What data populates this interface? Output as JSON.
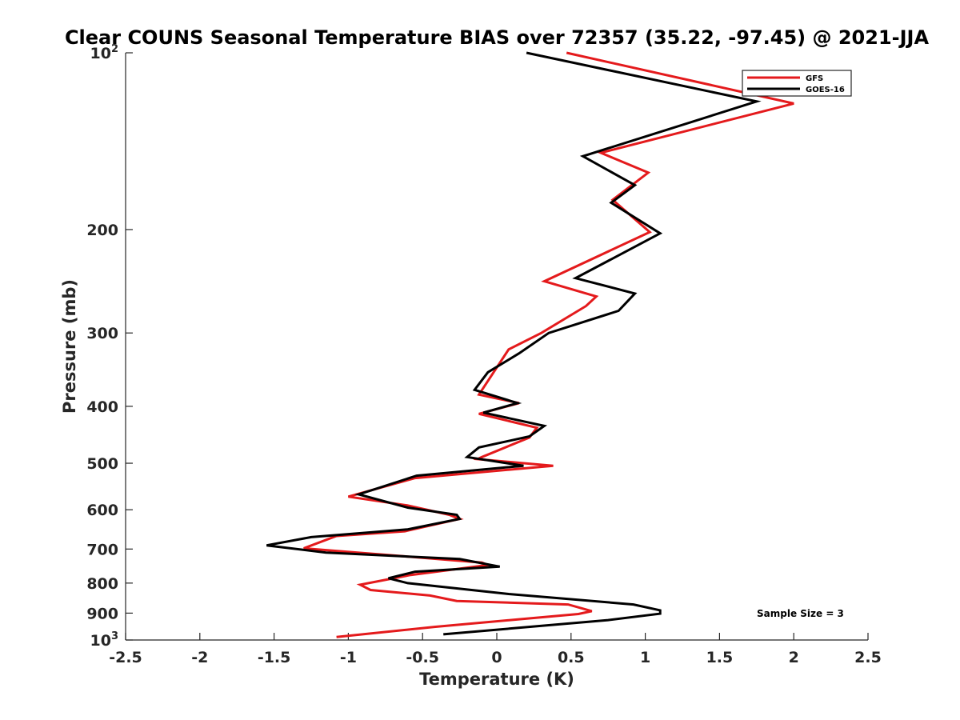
{
  "chart_data": {
    "type": "line",
    "title": "Clear COUNS Seasonal Temperature BIAS over 72357 (35.22, -97.45) @ 2021-JJA",
    "xlabel": "Temperature (K)",
    "ylabel": "Pressure (mb)",
    "xlim": [
      -2.5,
      2.5
    ],
    "ylim": [
      100,
      1000
    ],
    "yscale": "log",
    "yreversed": true,
    "grid": false,
    "legend_position": "top-right",
    "x_ticks": [
      "-2.5",
      "-2",
      "-1.5",
      "-1",
      "-0.5",
      "0",
      "0.5",
      "1",
      "1.5",
      "2",
      "2.5"
    ],
    "x_tick_values": [
      -2.5,
      -2,
      -1.5,
      -1,
      -0.5,
      0,
      0.5,
      1,
      1.5,
      2,
      2.5
    ],
    "y_ticks": [
      {
        "value": 100,
        "base": "10",
        "exp": "2"
      },
      {
        "value": 200,
        "label": "200"
      },
      {
        "value": 300,
        "label": "300"
      },
      {
        "value": 400,
        "label": "400"
      },
      {
        "value": 500,
        "label": "500"
      },
      {
        "value": 600,
        "label": "600"
      },
      {
        "value": 700,
        "label": "700"
      },
      {
        "value": 800,
        "label": "800"
      },
      {
        "value": 900,
        "label": "900"
      },
      {
        "value": 1000,
        "base": "10",
        "exp": "3"
      }
    ],
    "annotation": "Sample Size = 3",
    "series": [
      {
        "name": "GFS",
        "color": "#e41a1c",
        "x": [
          0.47,
          2.0,
          0.7,
          1.02,
          0.78,
          1.03,
          0.32,
          0.67,
          0.6,
          0.3,
          0.08,
          -0.12,
          0.15,
          -0.12,
          0.27,
          0.22,
          -0.1,
          -0.13,
          0.38,
          -0.55,
          -1.0,
          -0.6,
          -0.32,
          -0.25,
          -0.62,
          -1.08,
          -1.3,
          -0.87,
          -0.1,
          -0.06,
          -0.58,
          -0.92,
          -0.85,
          -0.45,
          -0.27,
          0.48,
          0.64,
          0.55,
          0.15,
          -0.42,
          -1.08
        ],
        "y": [
          100,
          122,
          148,
          160,
          178,
          202,
          245,
          260,
          270,
          300,
          320,
          382,
          395,
          412,
          435,
          452,
          488,
          492,
          505,
          530,
          570,
          590,
          612,
          622,
          653,
          665,
          698,
          712,
          738,
          745,
          775,
          805,
          822,
          840,
          858,
          870,
          893,
          903,
          922,
          950,
          988
        ]
      },
      {
        "name": "GOES-16",
        "color": "#000000",
        "x": [
          0.2,
          1.75,
          0.58,
          0.93,
          0.77,
          1.1,
          0.53,
          0.93,
          0.82,
          0.35,
          0.15,
          -0.06,
          -0.15,
          0.14,
          -0.09,
          0.32,
          0.22,
          -0.12,
          -0.2,
          0.18,
          -0.54,
          -0.93,
          -0.6,
          -0.27,
          -0.25,
          -0.6,
          -1.25,
          -1.55,
          -1.15,
          -0.25,
          0.02,
          -0.55,
          -0.73,
          -0.6,
          0.08,
          0.92,
          1.1,
          1.1,
          0.75,
          -0.36
        ],
        "y": [
          100,
          121,
          150,
          168,
          180,
          203,
          242,
          257,
          275,
          300,
          325,
          350,
          375,
          395,
          410,
          432,
          450,
          470,
          488,
          505,
          525,
          565,
          595,
          612,
          622,
          648,
          668,
          690,
          710,
          728,
          750,
          765,
          785,
          800,
          835,
          870,
          890,
          902,
          925,
          978
        ]
      }
    ]
  }
}
